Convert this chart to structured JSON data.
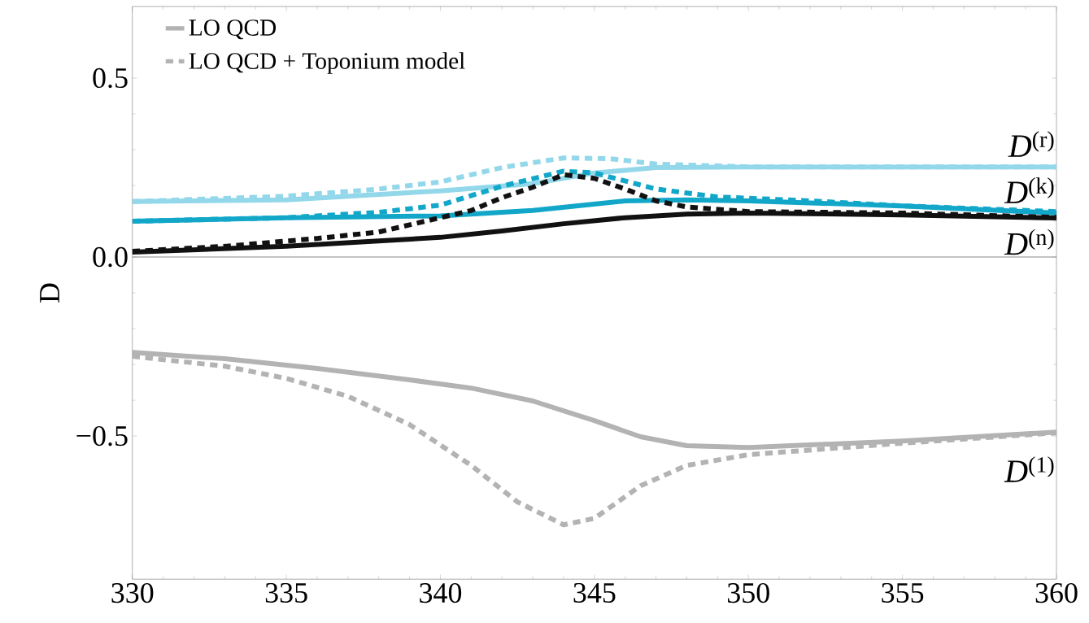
{
  "chart_data": {
    "type": "line",
    "ylabel": "D",
    "xlim": [
      330,
      360
    ],
    "ylim": [
      -0.9,
      0.7
    ],
    "xticks": [
      330,
      335,
      340,
      345,
      350,
      355,
      360
    ],
    "yticks": [
      {
        "value": -0.5,
        "label": "−0.5"
      },
      {
        "value": 0,
        "label": "0.0"
      },
      {
        "value": 0.5,
        "label": "0.5"
      }
    ],
    "legend": "top left",
    "grid": false,
    "ref_lines": [
      {
        "axis": "y",
        "value": 0,
        "color": "#888888"
      }
    ],
    "annotations": [
      "*D*$^{(r)}$",
      "*D*$^{(k)}$",
      "*D*$^{(n)}$",
      "*D*$^{(1)}$"
    ],
    "series": [
      {
        "name": "LO QCD",
        "color": "#b3b3b3",
        "line_style": "solid",
        "x": [
          330,
          333,
          336,
          339,
          341,
          343,
          345,
          346.5,
          348,
          350,
          355,
          360
        ],
        "values": [
          -0.266,
          -0.284,
          -0.311,
          -0.343,
          -0.366,
          -0.402,
          -0.457,
          -0.502,
          -0.527,
          -0.532,
          -0.514,
          -0.489
        ]
      },
      {
        "name": "LO QCD + Toponium model",
        "color": "#b3b3b3",
        "line_style": "dashed",
        "x": [
          330,
          333,
          335,
          337,
          339,
          341,
          342.5,
          344,
          345,
          346.5,
          348,
          350,
          355,
          360
        ],
        "values": [
          -0.277,
          -0.305,
          -0.339,
          -0.389,
          -0.468,
          -0.582,
          -0.684,
          -0.748,
          -0.73,
          -0.639,
          -0.582,
          -0.552,
          -0.52,
          -0.491
        ]
      },
      {
        "color": "#93d8ea",
        "line_style": "solid",
        "x": [
          330,
          335,
          340,
          343,
          345,
          347,
          350,
          360
        ],
        "values": [
          0.155,
          0.16,
          0.185,
          0.205,
          0.235,
          0.25,
          0.252,
          0.252
        ]
      },
      {
        "color": "#93d8ea",
        "line_style": "dashed",
        "x": [
          330,
          335,
          338,
          340,
          342,
          344,
          345.5,
          347,
          350,
          360
        ],
        "values": [
          0.155,
          0.17,
          0.19,
          0.21,
          0.25,
          0.277,
          0.275,
          0.26,
          0.252,
          0.252
        ]
      },
      {
        "color": "#12a7c9",
        "line_style": "solid",
        "x": [
          330,
          335,
          340,
          343,
          346,
          348,
          350,
          355,
          360
        ],
        "values": [
          0.1,
          0.11,
          0.115,
          0.13,
          0.157,
          0.16,
          0.157,
          0.143,
          0.123
        ]
      },
      {
        "color": "#12a7c9",
        "line_style": "dashed",
        "x": [
          330,
          335,
          338,
          340,
          342,
          344,
          345,
          347,
          349,
          352,
          355,
          360
        ],
        "values": [
          0.1,
          0.11,
          0.125,
          0.145,
          0.198,
          0.24,
          0.235,
          0.19,
          0.168,
          0.157,
          0.143,
          0.127
        ]
      },
      {
        "color": "#111111",
        "line_style": "solid",
        "x": [
          330,
          335,
          338,
          340,
          342,
          344,
          346,
          348,
          350,
          355,
          360
        ],
        "values": [
          0.014,
          0.03,
          0.045,
          0.055,
          0.073,
          0.093,
          0.11,
          0.12,
          0.123,
          0.118,
          0.109
        ]
      },
      {
        "color": "#111111",
        "line_style": "dashed",
        "x": [
          330,
          333,
          336,
          338,
          340,
          341,
          342,
          343,
          344,
          345,
          346,
          347,
          348,
          350,
          355,
          360
        ],
        "values": [
          0.016,
          0.03,
          0.052,
          0.07,
          0.11,
          0.13,
          0.166,
          0.195,
          0.23,
          0.22,
          0.19,
          0.157,
          0.14,
          0.127,
          0.123,
          0.111
        ]
      }
    ]
  }
}
